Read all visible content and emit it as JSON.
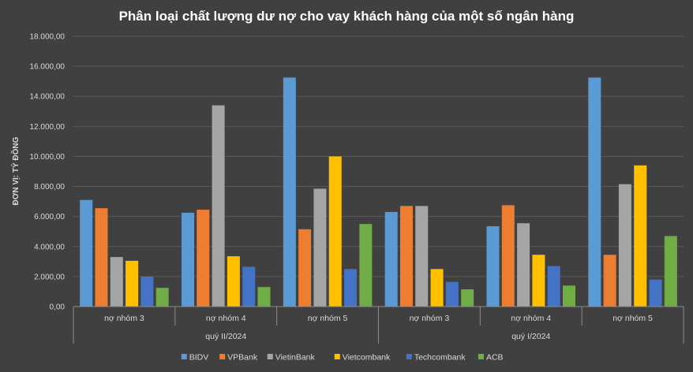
{
  "chart_data": {
    "type": "bar",
    "title": "Phân loại chất lượng dư nợ cho vay khách hàng của một số ngân hàng",
    "ylabel": "ĐƠN VỊ: TỶ ĐỒNG",
    "xlabel": "",
    "ylim": [
      0,
      18000
    ],
    "ytick_labels": [
      "0,00",
      "2.000,00",
      "4.000,00",
      "6.000,00",
      "8.000,00",
      "10.000,00",
      "12.000,00",
      "14.000,00",
      "16.000,00",
      "18.000,00"
    ],
    "ytick_values": [
      0,
      2000,
      4000,
      6000,
      8000,
      10000,
      12000,
      14000,
      16000,
      18000
    ],
    "grid": true,
    "legend_position": "bottom",
    "groups": [
      {
        "label": "quý II/2024",
        "categories": [
          "nợ nhóm 3",
          "nợ nhóm 4",
          "nợ nhóm 5"
        ]
      },
      {
        "label": "quý I/2024",
        "categories": [
          "nợ nhóm 3",
          "nợ nhóm 4",
          "nợ nhóm 5"
        ]
      }
    ],
    "categories": [
      "nợ nhóm 3",
      "nợ nhóm 4",
      "nợ nhóm 5",
      "nợ nhóm 3",
      "nợ nhóm 4",
      "nợ nhóm 5"
    ],
    "series": [
      {
        "name": "BIDV",
        "color": "#5b9bd5",
        "values": [
          7100,
          6250,
          15250,
          6300,
          5350,
          15250
        ]
      },
      {
        "name": "VPBank",
        "color": "#ed7d31",
        "values": [
          6550,
          6450,
          5150,
          6700,
          6750,
          3450
        ]
      },
      {
        "name": "VietinBank",
        "color": "#a5a5a5",
        "values": [
          3300,
          13400,
          7850,
          6700,
          5550,
          8150
        ]
      },
      {
        "name": "Vietcombank",
        "color": "#ffc000",
        "values": [
          3050,
          3350,
          10000,
          2500,
          3450,
          9400
        ]
      },
      {
        "name": "Techcombank",
        "color": "#4472c4",
        "values": [
          2000,
          2650,
          2500,
          1650,
          2700,
          1800
        ]
      },
      {
        "name": "ACB",
        "color": "#70ad47",
        "values": [
          1250,
          1300,
          5500,
          1150,
          1400,
          4700
        ]
      }
    ]
  }
}
